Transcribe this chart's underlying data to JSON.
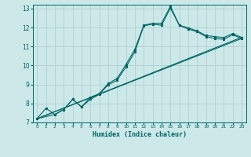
{
  "xlabel": "Humidex (Indice chaleur)",
  "bg_color": "#cce8e8",
  "grid_color": "#aacccc",
  "line_color": "#006666",
  "xlim": [
    -0.5,
    23.5
  ],
  "ylim": [
    7,
    13.2
  ],
  "yticks": [
    7,
    8,
    9,
    10,
    11,
    12,
    13
  ],
  "xticks": [
    0,
    1,
    2,
    3,
    4,
    5,
    6,
    7,
    8,
    9,
    10,
    11,
    12,
    13,
    14,
    15,
    16,
    17,
    18,
    19,
    20,
    21,
    22,
    23
  ],
  "line1_x": [
    0,
    1,
    2,
    3,
    4,
    5,
    6,
    7,
    8,
    9,
    10,
    11,
    12,
    13,
    14,
    15,
    16,
    17,
    18,
    19,
    20,
    21,
    22,
    23
  ],
  "line1_y": [
    7.2,
    7.75,
    7.42,
    7.68,
    8.22,
    7.82,
    8.32,
    8.52,
    9.05,
    9.32,
    10.05,
    10.85,
    12.12,
    12.22,
    12.22,
    13.12,
    12.12,
    11.98,
    11.82,
    11.58,
    11.52,
    11.47,
    11.68,
    11.48
  ],
  "line2_x": [
    0,
    2,
    3,
    4,
    5,
    6,
    7,
    8,
    9,
    10,
    11,
    12,
    13,
    14,
    15,
    16,
    17,
    18,
    19,
    20,
    21,
    22,
    23
  ],
  "line2_y": [
    7.2,
    7.42,
    7.68,
    8.22,
    7.82,
    8.22,
    8.48,
    8.98,
    9.22,
    9.92,
    10.72,
    12.08,
    12.18,
    12.12,
    13.02,
    12.12,
    11.92,
    11.78,
    11.52,
    11.42,
    11.38,
    11.62,
    11.42
  ],
  "line3_x": [
    0,
    23
  ],
  "line3_y": [
    7.2,
    11.48
  ],
  "line4_x": [
    0,
    23
  ],
  "line4_y": [
    7.2,
    11.42
  ]
}
